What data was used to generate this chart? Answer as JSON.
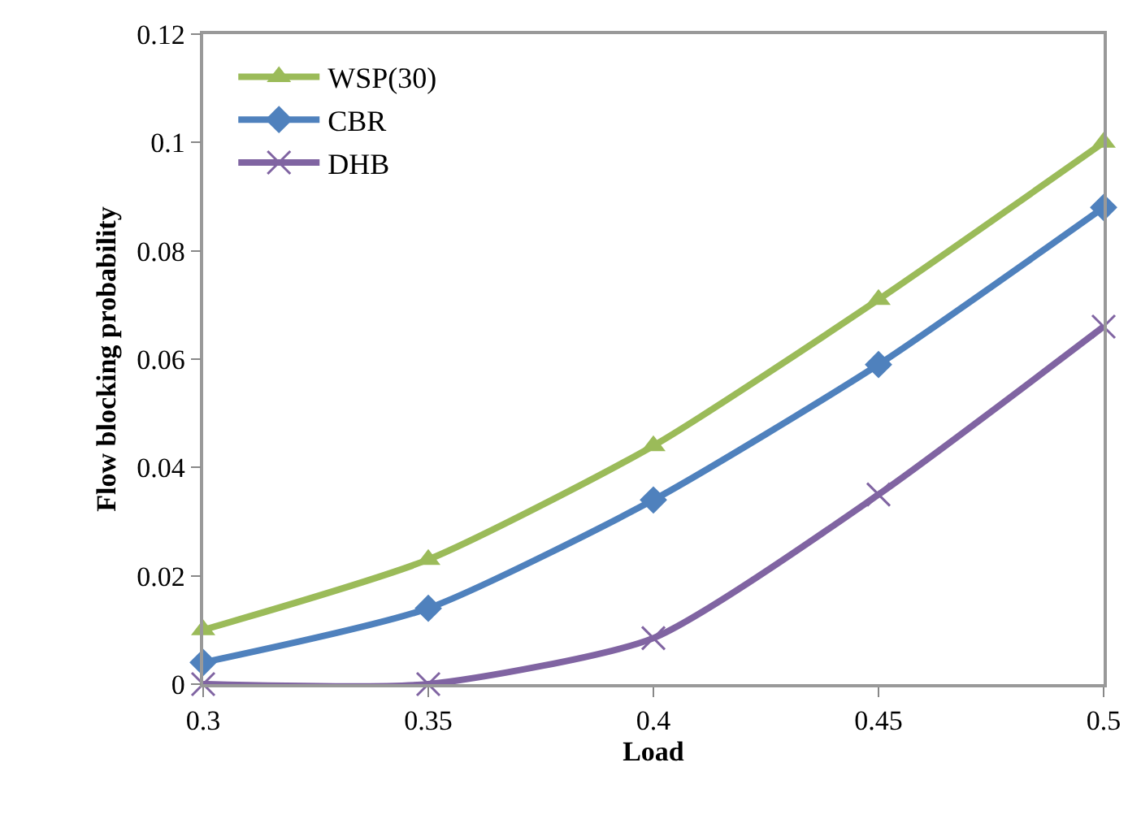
{
  "chart_data": {
    "type": "line",
    "xlabel": "Load",
    "ylabel": "Flow blocking probability",
    "x": [
      0.3,
      0.35,
      0.4,
      0.45,
      0.5
    ],
    "series": [
      {
        "name": "WSP(30)",
        "color": "#9bbb59",
        "marker": "triangle",
        "values": [
          0.01,
          0.023,
          0.044,
          0.071,
          0.1
        ]
      },
      {
        "name": "CBR",
        "color": "#4f81bd",
        "marker": "diamond",
        "values": [
          0.004,
          0.014,
          0.034,
          0.059,
          0.088
        ]
      },
      {
        "name": "DHB",
        "color": "#8064a2",
        "marker": "cross",
        "values": [
          0,
          0,
          0.0085,
          0.035,
          0.066
        ]
      }
    ],
    "xlim": [
      0.3,
      0.5
    ],
    "xticks": [
      0.3,
      0.35,
      0.4,
      0.45,
      0.5
    ],
    "ylim": [
      0,
      0.12
    ],
    "yticks": [
      0,
      0.02,
      0.04,
      0.06,
      0.08,
      0.1,
      0.12
    ],
    "grid": false,
    "legend": "top left"
  }
}
